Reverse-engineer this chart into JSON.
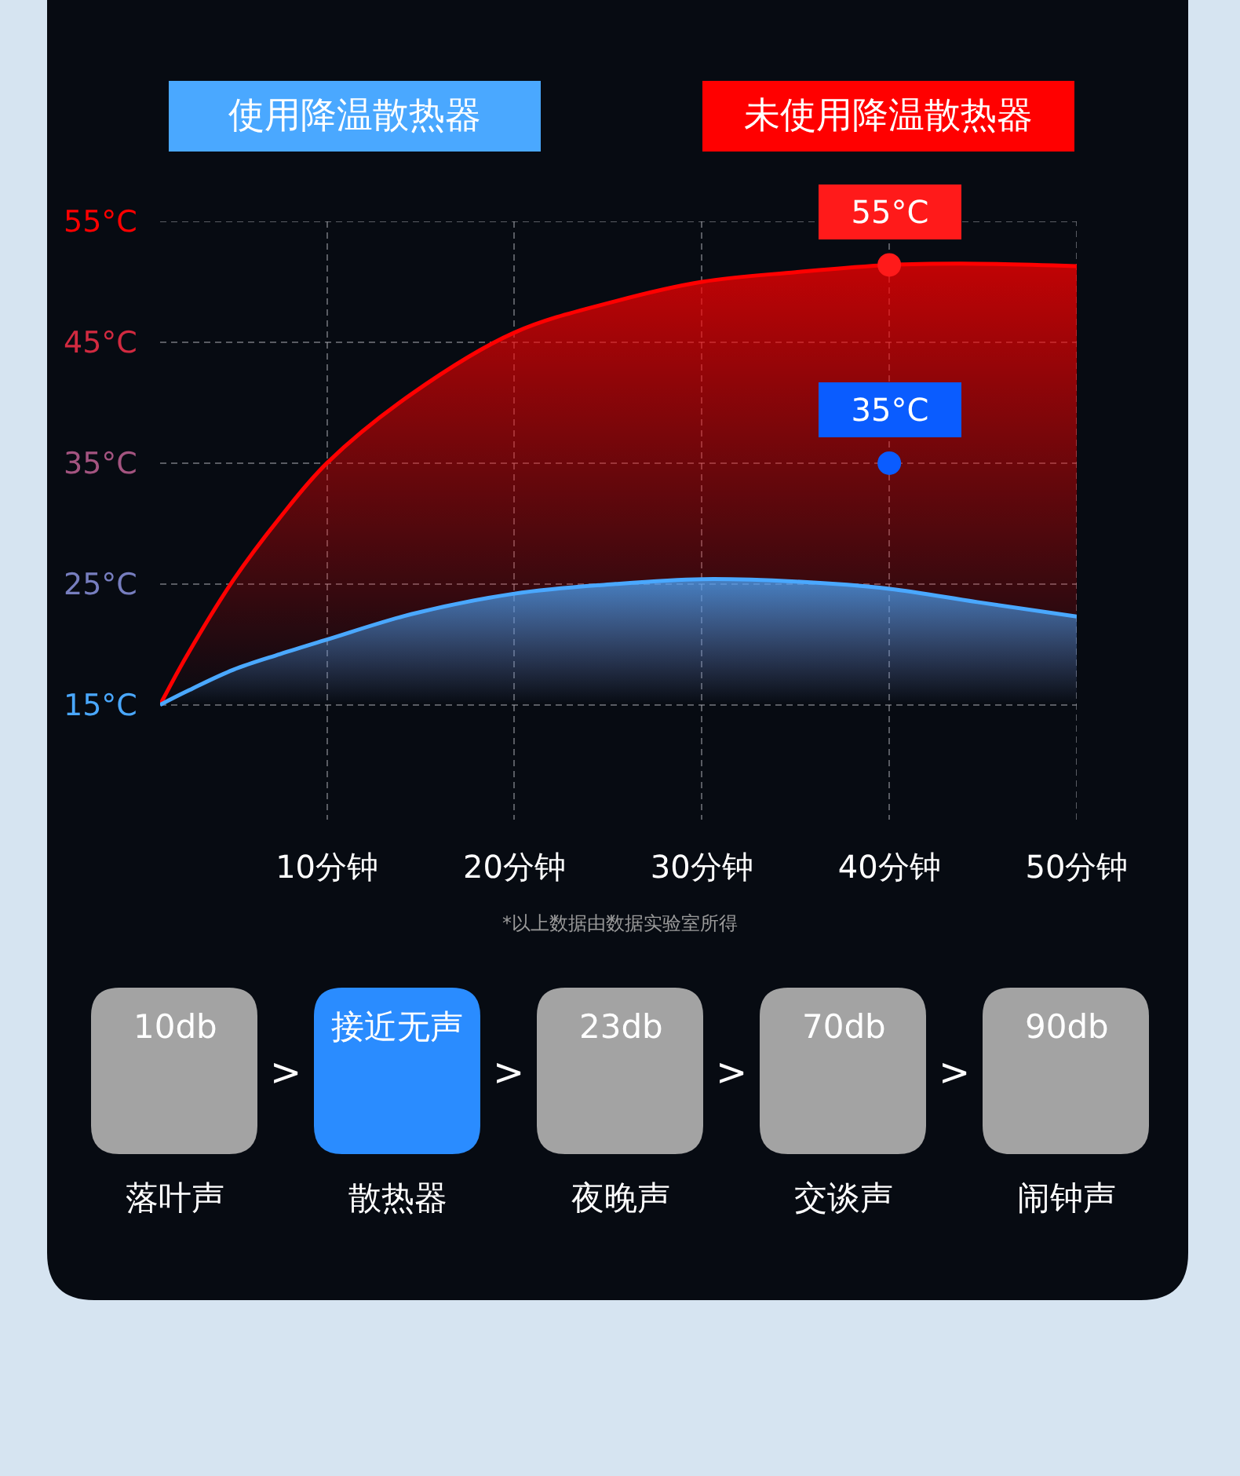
{
  "chart_data": [
    {
      "type": "area",
      "legend": "top",
      "grid": true,
      "xlim": [
        1.1,
        50
      ],
      "xticks": [
        {
          "value": 10,
          "label": "10分钟"
        },
        {
          "value": 20,
          "label": "20分钟"
        },
        {
          "value": 30,
          "label": "30分钟"
        },
        {
          "value": 40,
          "label": "40分钟"
        },
        {
          "value": 50,
          "label": "50分钟"
        }
      ],
      "ylim": [
        5.5,
        55
      ],
      "yticks": [
        {
          "value": 15,
          "label": "15°C"
        },
        {
          "value": 25,
          "label": "25°C"
        },
        {
          "value": 35,
          "label": "35°C"
        },
        {
          "value": 45,
          "label": "45°C"
        },
        {
          "value": 55,
          "label": "55°C"
        }
      ],
      "series": [
        {
          "name": "使用降温散热器",
          "type": "area",
          "color": "#4aa8ff",
          "x": [
            1.1,
            2.5,
            5,
            7.5,
            10,
            14.5,
            20,
            25.4,
            30,
            35,
            40,
            44.7,
            50
          ],
          "values": [
            15,
            16.1,
            17.9,
            19.2,
            20.4,
            22.5,
            24.2,
            25.0,
            25.4,
            25.2,
            24.6,
            23.5,
            22.3
          ]
        },
        {
          "name": "未使用降温散热器",
          "type": "area",
          "color": "#ff0000",
          "x": [
            1.1,
            2.5,
            5,
            7.5,
            10,
            14.5,
            20,
            25.4,
            30,
            35,
            40,
            44.7,
            50
          ],
          "values": [
            15,
            19.0,
            25.3,
            30.5,
            35.0,
            40.7,
            45.8,
            48.4,
            50.0,
            50.8,
            51.4,
            51.5,
            51.3
          ]
        },
        {
          "type": "scatter",
          "marker": "circle",
          "color": "#ff1a1a",
          "x": [
            40
          ],
          "values": [
            51.4
          ]
        },
        {
          "type": "scatter",
          "marker": "circle",
          "color": "#0a5cff",
          "x": [
            40
          ],
          "values": [
            35
          ]
        }
      ],
      "annotations": [
        {
          "text": "55°C",
          "x": 40,
          "y": 51.4
        },
        {
          "text": "35°C",
          "x": 40,
          "y": 35
        },
        "*以上数据由数据实验室所得"
      ]
    },
    {
      "type": "other",
      "categories": [
        "落叶声",
        "散热器",
        "夜晚声",
        "交谈声",
        "闹钟声"
      ],
      "value_labels": [
        "10db",
        "接近无声",
        "23db",
        "70db",
        "90db"
      ],
      "colors": [
        "#a3a3a3",
        "#2a8cff",
        "#a3a3a3",
        "#a3a3a3",
        "#a3a3a3"
      ],
      "annotations": [
        ">",
        ">",
        ">",
        ">"
      ]
    }
  ]
}
